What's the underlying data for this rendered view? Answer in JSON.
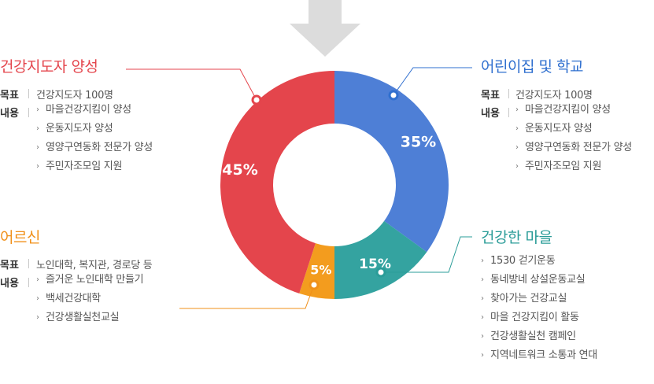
{
  "chart_data": {
    "type": "pie",
    "categories": [
      "어린이집 및 학교",
      "건강한 마을",
      "어르신",
      "건강지도자 양성"
    ],
    "values": [
      35,
      15,
      5,
      45
    ],
    "labels": [
      "35%",
      "15%",
      "5%",
      "45%"
    ],
    "colors": [
      "#4e7fd6",
      "#34a3a0",
      "#f39c1e",
      "#e4454c"
    ]
  },
  "sections": {
    "leader": {
      "title": "건강지도자 양성",
      "goal_label": "목표",
      "goal": "건강지도자 100명",
      "content_label": "내용",
      "items": [
        "마을건강지킴이 양성",
        "운동지도자 양성",
        "영양구연동화 전문가 양성",
        "주민자조모임 지원"
      ]
    },
    "school": {
      "title": "어린이집 및 학교",
      "goal_label": "목표",
      "goal": "건강지도자 100명",
      "content_label": "내용",
      "items": [
        "마을건강지킴이 양성",
        "운동지도자 양성",
        "영양구연동화 전문가 양성",
        "주민자조모임 지원"
      ]
    },
    "senior": {
      "title": "어르신",
      "goal_label": "목표",
      "goal": "노인대학, 복지관, 경로당 등",
      "content_label": "내용",
      "items": [
        "즐거운 노인대학 만들기",
        "백세건강대학",
        "건강생활실천교실"
      ]
    },
    "village": {
      "title": "건강한 마을",
      "items": [
        "1530 걷기운동",
        "동네방네 상설운동교실",
        "찾아가는 건강교실",
        "마을 건강지킴이 활동",
        "건강생활실천 캠페인",
        "지역네트워크 소통과 연대"
      ]
    }
  },
  "colors": {
    "leader": "#e4454c",
    "school": "#2f6fcf",
    "senior": "#f0901a",
    "village": "#2a9c98",
    "arrow": "#d8d8d8"
  },
  "icons": {
    "item_bullet": "chevron-right-icon",
    "arrow": "down-arrow-icon"
  }
}
